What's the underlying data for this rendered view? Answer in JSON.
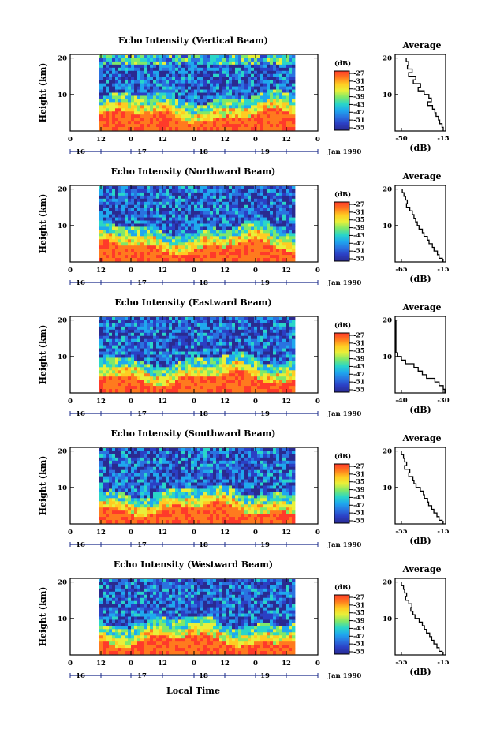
{
  "chart_data": [
    {
      "type": "heatmap",
      "title": "Echo Intensity (Vertical Beam)",
      "ylabel": "Height (km)",
      "yticks": [
        "10",
        "20"
      ],
      "xticks_hour": [
        "0",
        "12",
        "0",
        "12",
        "0",
        "12",
        "0",
        "12",
        "0"
      ],
      "xticks_day": [
        "16",
        "17",
        "18",
        "19"
      ],
      "month_label": "Jan 1990",
      "colorbar": {
        "label": "(dB)",
        "ticks": [
          "-27",
          "-31",
          "-35",
          "-39",
          "-43",
          "-47",
          "-51",
          "-55"
        ]
      },
      "profile": {
        "title": "Average",
        "xlabel": "(dB)",
        "xticks": [
          "-50",
          "-15"
        ],
        "yticks": [
          "10",
          "20"
        ],
        "points": [
          [
            -46,
            20
          ],
          [
            -44,
            19
          ],
          [
            -45,
            18
          ],
          [
            -41,
            17
          ],
          [
            -44,
            16
          ],
          [
            -38,
            15
          ],
          [
            -40,
            14
          ],
          [
            -34,
            13
          ],
          [
            -36,
            12
          ],
          [
            -31,
            11
          ],
          [
            -27,
            10
          ],
          [
            -25,
            9
          ],
          [
            -28,
            8
          ],
          [
            -24,
            7
          ],
          [
            -22,
            6
          ],
          [
            -21,
            5
          ],
          [
            -19,
            4
          ],
          [
            -18,
            3
          ],
          [
            -16,
            2
          ],
          [
            -15,
            1
          ]
        ]
      }
    },
    {
      "type": "heatmap",
      "title": "Echo Intensity (Northward Beam)",
      "ylabel": "Height (km)",
      "yticks": [
        "10",
        "20"
      ],
      "xticks_hour": [
        "0",
        "12",
        "0",
        "12",
        "0",
        "12",
        "0",
        "12",
        "0"
      ],
      "xticks_day": [
        "16",
        "17",
        "18",
        "19"
      ],
      "month_label": "Jan 1990",
      "colorbar": {
        "label": "(dB)",
        "ticks": [
          "-27",
          "-31",
          "-35",
          "-39",
          "-43",
          "-47",
          "-51",
          "-55"
        ]
      },
      "profile": {
        "title": "Average",
        "xlabel": "(dB)",
        "xticks": [
          "-65",
          "-15"
        ],
        "yticks": [
          "10",
          "20"
        ],
        "points": [
          [
            -64,
            20
          ],
          [
            -62,
            19
          ],
          [
            -60,
            18
          ],
          [
            -58,
            17
          ],
          [
            -59,
            16
          ],
          [
            -55,
            15
          ],
          [
            -52,
            14
          ],
          [
            -50,
            13
          ],
          [
            -48,
            12
          ],
          [
            -46,
            11
          ],
          [
            -44,
            10
          ],
          [
            -40,
            9
          ],
          [
            -38,
            8
          ],
          [
            -34,
            7
          ],
          [
            -32,
            6
          ],
          [
            -28,
            5
          ],
          [
            -26,
            4
          ],
          [
            -22,
            3
          ],
          [
            -20,
            2
          ],
          [
            -16,
            1
          ]
        ]
      }
    },
    {
      "type": "heatmap",
      "title": "Echo Intensity (Eastward Beam)",
      "ylabel": "Height (km)",
      "yticks": [
        "10",
        "20"
      ],
      "xticks_hour": [
        "0",
        "12",
        "0",
        "12",
        "0",
        "12",
        "0",
        "12",
        "0"
      ],
      "xticks_day": [
        "16",
        "17",
        "18",
        "19"
      ],
      "month_label": "Jan 1990",
      "colorbar": {
        "label": "(dB)",
        "ticks": [
          "-27",
          "-31",
          "-35",
          "-39",
          "-43",
          "-47",
          "-51",
          "-55"
        ]
      },
      "profile": {
        "title": "Average",
        "xlabel": "(dB)",
        "xticks": [
          "-40",
          "-30"
        ],
        "yticks": [
          "10",
          "20"
        ],
        "points": [
          [
            -47,
            20
          ],
          [
            -46,
            19
          ],
          [
            -45,
            18
          ],
          [
            -46,
            17
          ],
          [
            -44,
            16
          ],
          [
            -44,
            15
          ],
          [
            -45,
            14
          ],
          [
            -43,
            13
          ],
          [
            -42,
            12
          ],
          [
            -41,
            11
          ],
          [
            -40,
            10
          ],
          [
            -39,
            9
          ],
          [
            -37,
            8
          ],
          [
            -36,
            7
          ],
          [
            -35,
            6
          ],
          [
            -34,
            5
          ],
          [
            -32,
            4
          ],
          [
            -31,
            3
          ],
          [
            -30,
            2
          ],
          [
            -29,
            1
          ]
        ]
      }
    },
    {
      "type": "heatmap",
      "title": "Echo Intensity (Southward Beam)",
      "ylabel": "Height (km)",
      "yticks": [
        "10",
        "20"
      ],
      "xticks_hour": [
        "0",
        "12",
        "0",
        "12",
        "0",
        "12",
        "0",
        "12",
        "0"
      ],
      "xticks_day": [
        "16",
        "17",
        "18",
        "19"
      ],
      "month_label": "Jan 1990",
      "colorbar": {
        "label": "(dB)",
        "ticks": [
          "-27",
          "-31",
          "-35",
          "-39",
          "-43",
          "-47",
          "-51",
          "-55"
        ]
      },
      "profile": {
        "title": "Average",
        "xlabel": "(dB)",
        "xticks": [
          "-55",
          "-15"
        ],
        "yticks": [
          "10",
          "20"
        ],
        "points": [
          [
            -55,
            20
          ],
          [
            -53,
            19
          ],
          [
            -52,
            18
          ],
          [
            -50,
            17
          ],
          [
            -52,
            16
          ],
          [
            -47,
            15
          ],
          [
            -48,
            14
          ],
          [
            -44,
            13
          ],
          [
            -43,
            12
          ],
          [
            -41,
            11
          ],
          [
            -37,
            10
          ],
          [
            -34,
            9
          ],
          [
            -33,
            8
          ],
          [
            -30,
            7
          ],
          [
            -29,
            6
          ],
          [
            -26,
            5
          ],
          [
            -24,
            4
          ],
          [
            -21,
            3
          ],
          [
            -19,
            2
          ],
          [
            -16,
            1
          ]
        ]
      }
    },
    {
      "type": "heatmap",
      "title": "Echo Intensity (Westward Beam)",
      "ylabel": "Height (km)",
      "yticks": [
        "10",
        "20"
      ],
      "xticks_hour": [
        "0",
        "12",
        "0",
        "12",
        "0",
        "12",
        "0",
        "12",
        "0"
      ],
      "xticks_day": [
        "16",
        "17",
        "18",
        "19"
      ],
      "month_label": "Jan 1990",
      "colorbar": {
        "label": "(dB)",
        "ticks": [
          "-27",
          "-31",
          "-35",
          "-39",
          "-43",
          "-47",
          "-51",
          "-55"
        ]
      },
      "profile": {
        "title": "Average",
        "xlabel": "(dB)",
        "xticks": [
          "-55",
          "-15"
        ],
        "yticks": [
          "10",
          "20"
        ],
        "points": [
          [
            -55,
            20
          ],
          [
            -53,
            19
          ],
          [
            -52,
            18
          ],
          [
            -50,
            17
          ],
          [
            -51,
            16
          ],
          [
            -48,
            15
          ],
          [
            -45,
            14
          ],
          [
            -46,
            13
          ],
          [
            -44,
            12
          ],
          [
            -42,
            11
          ],
          [
            -38,
            10
          ],
          [
            -35,
            9
          ],
          [
            -33,
            8
          ],
          [
            -31,
            7
          ],
          [
            -28,
            6
          ],
          [
            -26,
            5
          ],
          [
            -24,
            4
          ],
          [
            -21,
            3
          ],
          [
            -19,
            2
          ],
          [
            -16,
            1
          ]
        ]
      }
    }
  ],
  "figure": {
    "xlabel": "Local Time",
    "colormap": [
      "#ff3a2a",
      "#ff7a1e",
      "#ffcc22",
      "#e8f03a",
      "#7fe86a",
      "#2ad6c8",
      "#1fa8ee",
      "#2a72e0",
      "#2b3fc4",
      "#2a2a90"
    ]
  }
}
